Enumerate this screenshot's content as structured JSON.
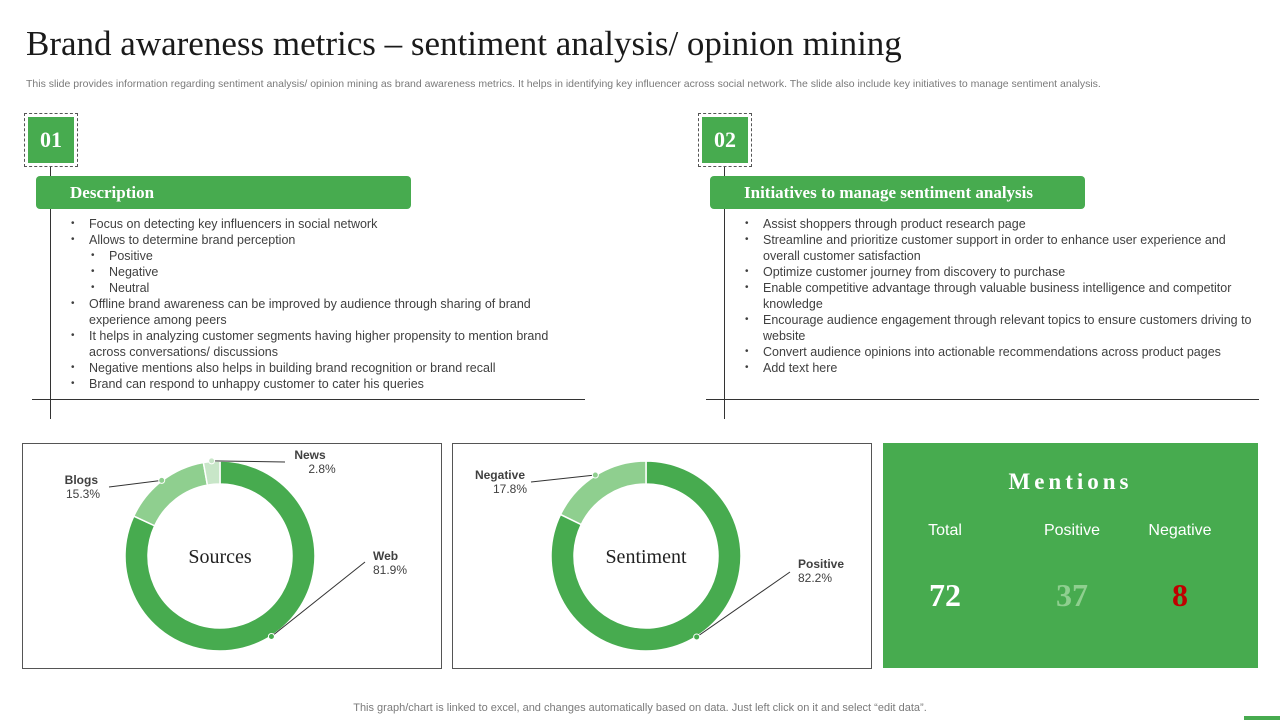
{
  "header": {
    "title": "Brand awareness metrics – sentiment analysis/ opinion mining",
    "subtitle": "This slide provides information regarding sentiment analysis/ opinion mining as brand awareness metrics. It helps in identifying key influencer across social network. The slide also include key initiatives to manage sentiment analysis."
  },
  "section1": {
    "number": "01",
    "heading": "Description",
    "items": [
      {
        "text": "Focus on detecting key influencers in social network",
        "sub": false
      },
      {
        "text": "Allows to determine brand perception",
        "sub": false
      },
      {
        "text": "Positive",
        "sub": true
      },
      {
        "text": "Negative",
        "sub": true
      },
      {
        "text": "Neutral",
        "sub": true
      },
      {
        "text": "Offline brand awareness can be improved by audience through sharing of brand experience among peers",
        "sub": false
      },
      {
        "text": "It helps in analyzing customer segments having higher propensity to mention brand across conversations/ discussions",
        "sub": false
      },
      {
        "text": "Negative mentions also helps in building brand recognition or brand recall",
        "sub": false
      },
      {
        "text": "Brand can respond to unhappy customer to cater his queries",
        "sub": false
      }
    ]
  },
  "section2": {
    "number": "02",
    "heading": "Initiatives to manage sentiment analysis",
    "items": [
      {
        "text": "Assist shoppers through product research page",
        "sub": false
      },
      {
        "text": "Streamline and prioritize customer support in order to enhance user experience and overall customer satisfaction",
        "sub": false
      },
      {
        "text": "Optimize customer journey from discovery to purchase",
        "sub": false
      },
      {
        "text": "Enable competitive advantage through valuable business intelligence and competitor knowledge",
        "sub": false
      },
      {
        "text": "Encourage audience engagement through relevant topics to ensure customers driving to website",
        "sub": false
      },
      {
        "text": "Convert audience opinions into actionable recommendations across product pages",
        "sub": false
      },
      {
        "text": "Add text here",
        "sub": false
      }
    ]
  },
  "colors": {
    "green": "#47ab4f",
    "light_green": "#8fcf8f",
    "pale_green": "#c8e6c8",
    "positive_value": "#8fcf8f",
    "negative_value": "#c00000"
  },
  "chart_data": [
    {
      "type": "pie",
      "title": "Sources",
      "labels": [
        "Web",
        "Blogs",
        "News"
      ],
      "values": [
        81.9,
        15.3,
        2.8
      ],
      "value_labels": [
        "81.9%",
        "15.3%",
        "2.8%"
      ],
      "colors": [
        "#47ab4f",
        "#8fcf8f",
        "#c8e6c8"
      ]
    },
    {
      "type": "pie",
      "title": "Sentiment",
      "labels": [
        "Positive",
        "Negative"
      ],
      "values": [
        82.2,
        17.8
      ],
      "value_labels": [
        "82.2%",
        "17.8%"
      ],
      "colors": [
        "#47ab4f",
        "#8fcf8f"
      ]
    }
  ],
  "mentions": {
    "title": "Mentions",
    "columns": [
      {
        "label": "Total",
        "value": "72"
      },
      {
        "label": "Positive",
        "value": "37"
      },
      {
        "label": "Negative",
        "value": "8"
      }
    ]
  },
  "footer": "This graph/chart is linked to excel, and changes automatically based on data. Just left click on it and select “edit data”."
}
